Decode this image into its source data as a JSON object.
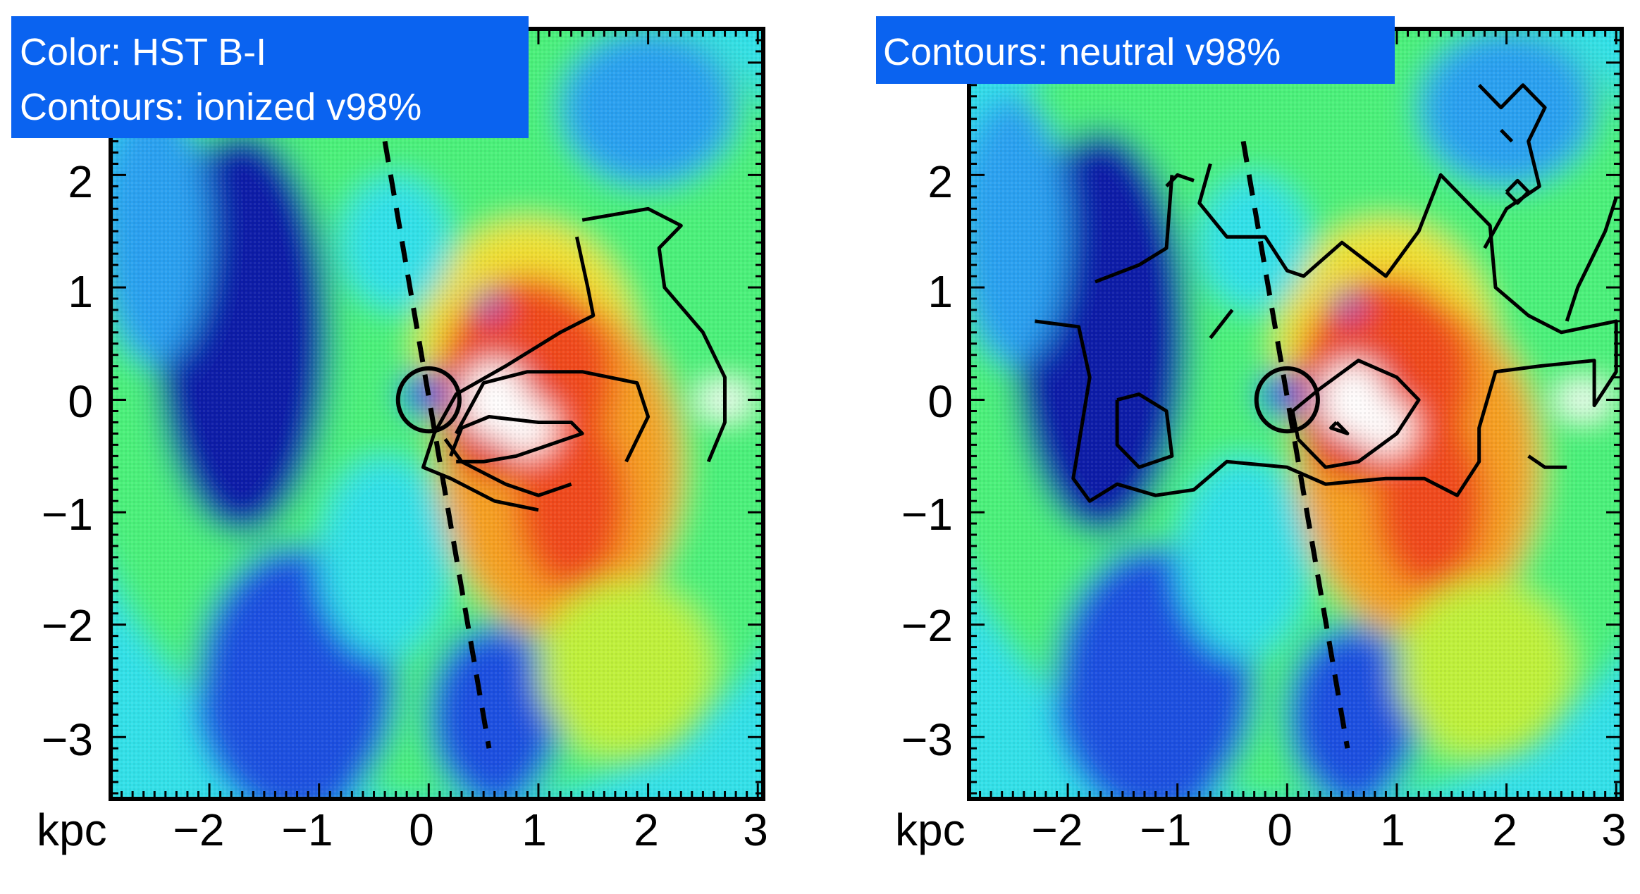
{
  "chart_data": [
    {
      "type": "heatmap",
      "panel": "left",
      "annotations": [
        "Color: HST B-I",
        "Contours: ionized v98%"
      ],
      "x_ticks": [
        "kpc",
        "−2",
        "−1",
        "0",
        "1",
        "2",
        "3"
      ],
      "y_ticks": [
        "2",
        "1",
        "0",
        "−1",
        "−2",
        "−3"
      ],
      "xlim": [
        -2.9,
        3.05
      ],
      "ylim": [
        -3.55,
        3.3
      ],
      "grid": false,
      "dashed_line": [
        [
          -0.4,
          2.3
        ],
        [
          0.55,
          -3.1
        ]
      ],
      "circle": {
        "x": 0.0,
        "y": 0.0,
        "r": 0.28
      },
      "contours": [
        [
          [
            1.4,
            1.6
          ],
          [
            2.0,
            1.7
          ],
          [
            2.3,
            1.55
          ],
          [
            2.1,
            1.35
          ],
          [
            2.15,
            1.0
          ],
          [
            2.5,
            0.6
          ],
          [
            2.7,
            0.2
          ],
          [
            2.7,
            -0.2
          ],
          [
            2.55,
            -0.55
          ]
        ],
        [
          [
            1.35,
            1.45
          ],
          [
            1.45,
            1.0
          ],
          [
            1.5,
            0.75
          ],
          [
            1.2,
            0.6
          ],
          [
            0.7,
            0.3
          ],
          [
            0.25,
            0.05
          ],
          [
            0.05,
            -0.3
          ],
          [
            -0.05,
            -0.6
          ],
          [
            0.2,
            -0.7
          ],
          [
            0.6,
            -0.9
          ],
          [
            1.0,
            -0.98
          ]
        ],
        [
          [
            0.25,
            -0.3
          ],
          [
            0.5,
            0.15
          ],
          [
            0.9,
            0.25
          ],
          [
            1.4,
            0.25
          ],
          [
            1.9,
            0.15
          ],
          [
            2.0,
            -0.15
          ],
          [
            1.8,
            -0.55
          ]
        ],
        [
          [
            0.15,
            -0.35
          ],
          [
            0.3,
            -0.55
          ],
          [
            0.7,
            -0.75
          ],
          [
            1.0,
            -0.85
          ],
          [
            1.3,
            -0.75
          ]
        ],
        [
          [
            0.2,
            -0.5
          ],
          [
            0.3,
            -0.25
          ],
          [
            0.55,
            -0.15
          ],
          [
            1.0,
            -0.2
          ],
          [
            1.3,
            -0.2
          ],
          [
            1.4,
            -0.3
          ],
          [
            1.1,
            -0.4
          ],
          [
            0.8,
            -0.5
          ],
          [
            0.5,
            -0.55
          ],
          [
            0.25,
            -0.55
          ]
        ]
      ]
    },
    {
      "type": "heatmap",
      "panel": "right",
      "annotations": [
        "Contours: neutral v98%"
      ],
      "x_ticks": [
        "kpc",
        "−2",
        "−1",
        "0",
        "1",
        "2",
        "3"
      ],
      "y_ticks": [
        "2",
        "1",
        "0",
        "−1",
        "−2",
        "−3"
      ],
      "xlim": [
        -2.9,
        3.05
      ],
      "ylim": [
        -3.55,
        3.3
      ],
      "grid": false,
      "dashed_line": [
        [
          -0.4,
          2.3
        ],
        [
          0.55,
          -3.1
        ]
      ],
      "circle": {
        "x": 0.0,
        "y": 0.0,
        "r": 0.28
      },
      "contours": [
        [
          [
            -2.3,
            0.7
          ],
          [
            -1.9,
            0.65
          ],
          [
            -1.8,
            0.2
          ],
          [
            -1.95,
            -0.7
          ],
          [
            -1.8,
            -0.9
          ],
          [
            -1.55,
            -0.75
          ],
          [
            -1.2,
            -0.85
          ],
          [
            -0.85,
            -0.8
          ],
          [
            -0.55,
            -0.55
          ],
          [
            0.0,
            -0.6
          ],
          [
            0.35,
            -0.75
          ],
          [
            0.9,
            -0.7
          ],
          [
            1.25,
            -0.7
          ],
          [
            1.55,
            -0.85
          ],
          [
            1.75,
            -0.55
          ],
          [
            1.75,
            -0.25
          ],
          [
            1.9,
            0.25
          ],
          [
            2.3,
            0.3
          ],
          [
            2.8,
            0.35
          ],
          [
            2.8,
            -0.05
          ],
          [
            3.0,
            0.25
          ],
          [
            3.0,
            0.7
          ],
          [
            2.5,
            0.6
          ],
          [
            2.2,
            0.75
          ],
          [
            1.9,
            1.0
          ],
          [
            1.85,
            1.55
          ],
          [
            1.4,
            2.0
          ],
          [
            1.2,
            1.5
          ],
          [
            0.9,
            1.1
          ],
          [
            0.5,
            1.4
          ],
          [
            0.15,
            1.1
          ],
          [
            0.0,
            1.15
          ],
          [
            -0.2,
            1.45
          ],
          [
            -0.55,
            1.45
          ],
          [
            -0.8,
            1.75
          ],
          [
            -0.7,
            2.1
          ]
        ],
        [
          [
            -1.05,
            2.0
          ],
          [
            -1.1,
            1.35
          ],
          [
            -1.35,
            1.2
          ],
          [
            -1.75,
            1.05
          ]
        ],
        [
          [
            -0.85,
            1.95
          ],
          [
            -1.0,
            2.0
          ],
          [
            -1.1,
            1.9
          ]
        ],
        [
          [
            -1.55,
            -0.0
          ],
          [
            -1.35,
            0.05
          ],
          [
            -1.1,
            -0.1
          ],
          [
            -1.05,
            -0.5
          ],
          [
            -1.35,
            -0.6
          ],
          [
            -1.55,
            -0.4
          ],
          [
            -1.55,
            -0.0
          ]
        ],
        [
          [
            0.1,
            -0.35
          ],
          [
            0.05,
            -0.1
          ],
          [
            0.3,
            0.1
          ],
          [
            0.65,
            0.35
          ],
          [
            1.0,
            0.2
          ],
          [
            1.2,
            0.0
          ],
          [
            1.0,
            -0.3
          ],
          [
            0.65,
            -0.55
          ],
          [
            0.35,
            -0.6
          ],
          [
            0.1,
            -0.35
          ]
        ],
        [
          [
            0.45,
            -0.2
          ],
          [
            0.55,
            -0.3
          ],
          [
            0.4,
            -0.25
          ],
          [
            0.45,
            -0.2
          ]
        ],
        [
          [
            1.75,
            2.8
          ],
          [
            1.95,
            2.6
          ],
          [
            2.15,
            2.8
          ],
          [
            2.35,
            2.6
          ],
          [
            2.2,
            2.3
          ],
          [
            2.3,
            1.9
          ],
          [
            2.0,
            1.7
          ],
          [
            1.8,
            1.35
          ]
        ],
        [
          [
            2.0,
            1.85
          ],
          [
            2.1,
            1.95
          ],
          [
            2.2,
            1.85
          ],
          [
            2.1,
            1.75
          ],
          [
            2.0,
            1.85
          ]
        ],
        [
          [
            2.55,
            0.7
          ],
          [
            2.65,
            1.0
          ],
          [
            2.9,
            1.5
          ],
          [
            3.0,
            1.8
          ]
        ],
        [
          [
            1.95,
            2.4
          ],
          [
            2.05,
            2.3
          ]
        ],
        [
          [
            2.2,
            -0.5
          ],
          [
            2.35,
            -0.6
          ],
          [
            2.55,
            -0.6
          ]
        ],
        [
          [
            -0.5,
            0.8
          ],
          [
            -0.7,
            0.55
          ]
        ]
      ]
    }
  ],
  "colors": {
    "badge": "#0a63f0",
    "contour": "#000000",
    "colormap": [
      "#0f1aa8",
      "#1f4fe0",
      "#2aa0f0",
      "#33e0e8",
      "#4cf07a",
      "#bff03a",
      "#f0e030",
      "#f5a020",
      "#f04a1a",
      "#e01a14",
      "#ffffff"
    ]
  }
}
